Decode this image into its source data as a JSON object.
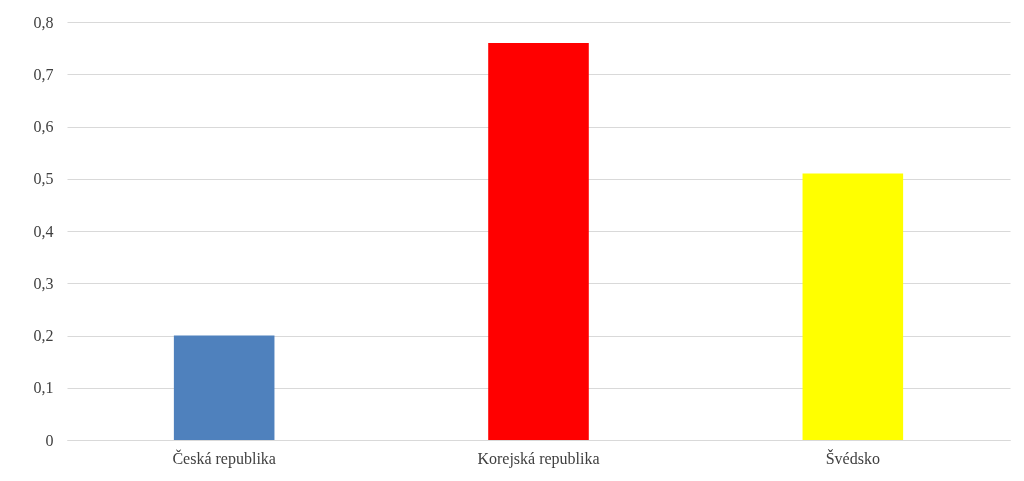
{
  "chart_data": {
    "type": "bar",
    "categories": [
      "Česká republika",
      "Korejská republika",
      "Švédsko"
    ],
    "values": [
      0.2,
      0.76,
      0.51
    ],
    "colors": [
      "#4f81bd",
      "#ff0000",
      "#ffff00"
    ],
    "ylim": [
      0,
      0.8
    ],
    "yticks": [
      0,
      {
        "value": 0.1,
        "label": "0,1"
      },
      {
        "value": 0.2,
        "label": "0,2"
      },
      {
        "value": 0.3,
        "label": "0,3"
      },
      {
        "value": 0.4,
        "label": "0,4"
      },
      {
        "value": 0.5,
        "label": "0,5"
      },
      {
        "value": 0.6,
        "label": "0,6"
      },
      {
        "value": 0.7,
        "label": "0,7"
      },
      {
        "value": 0.8,
        "label": "0,8"
      }
    ],
    "grid": "y"
  }
}
